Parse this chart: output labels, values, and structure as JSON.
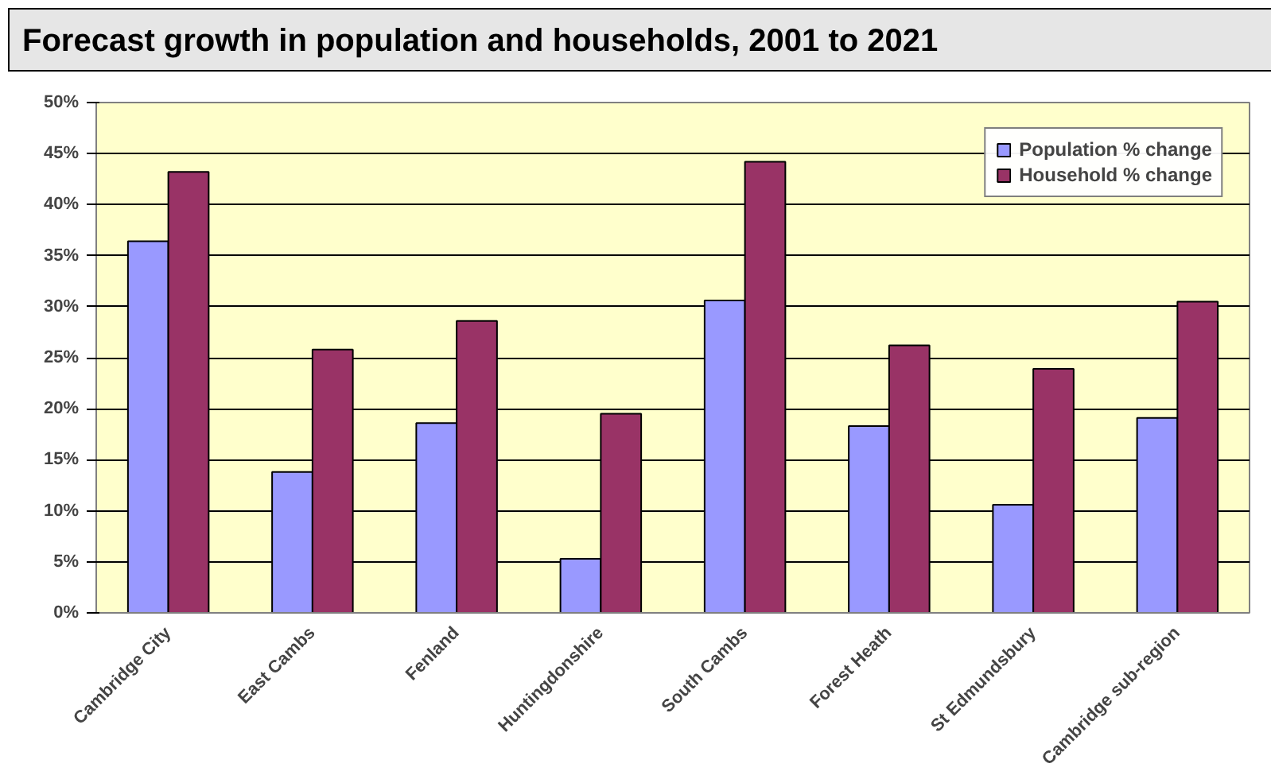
{
  "chart_data": {
    "type": "bar",
    "title": "Forecast growth in population and households, 2001 to 2021",
    "categories": [
      "Cambridge City",
      "East Cambs",
      "Fenland",
      "Huntingdonshire",
      "South Cambs",
      "Forest Heath",
      "St Edmundsbury",
      "Cambridge sub-region"
    ],
    "series": [
      {
        "name": "Population % change",
        "color": "#9999ff",
        "values": [
          36.4,
          13.8,
          18.6,
          5.3,
          30.6,
          18.3,
          10.6,
          19.1
        ]
      },
      {
        "name": "Household % change",
        "color": "#993366",
        "values": [
          43.2,
          25.8,
          28.6,
          19.5,
          44.2,
          26.2,
          23.9,
          30.5
        ]
      }
    ],
    "ylim": [
      0,
      50
    ],
    "yticks": [
      {
        "value": 0,
        "label": "0%"
      },
      {
        "value": 5,
        "label": "5%"
      },
      {
        "value": 10,
        "label": "10%"
      },
      {
        "value": 15,
        "label": "15%"
      },
      {
        "value": 20,
        "label": "20%"
      },
      {
        "value": 25,
        "label": "25%"
      },
      {
        "value": 30,
        "label": "30%"
      },
      {
        "value": 35,
        "label": "35%"
      },
      {
        "value": 40,
        "label": "40%"
      },
      {
        "value": 45,
        "label": "45%"
      },
      {
        "value": 50,
        "label": "50%"
      }
    ],
    "grid": "y",
    "legend": "top right"
  }
}
